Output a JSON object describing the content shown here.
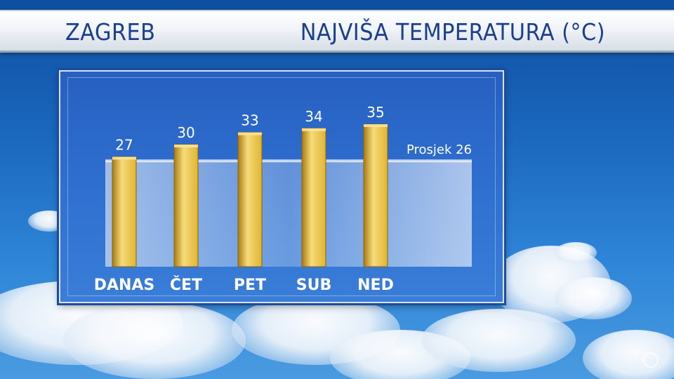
{
  "header": {
    "city": "ZAGREB",
    "title": "NAJVIŠA TEMPERATURA (°C)"
  },
  "chart_data": {
    "type": "bar",
    "title": "NAJVIŠA TEMPERATURA (°C)",
    "categories": [
      "DANAS",
      "ČET",
      "PET",
      "SUB",
      "NED"
    ],
    "values": [
      27,
      30,
      33,
      34,
      35
    ],
    "value_labels": [
      "27",
      "30",
      "33",
      "34",
      "35"
    ],
    "reference_line": {
      "label": "Prosjek 26",
      "value": 26
    },
    "xlabel": "",
    "ylabel": "",
    "grid": false,
    "colors": {
      "bar": "#e0b431",
      "bar_dark": "#a87a12",
      "bar_light": "#f6dc7a",
      "avg_band": "#cfe2f6"
    }
  }
}
